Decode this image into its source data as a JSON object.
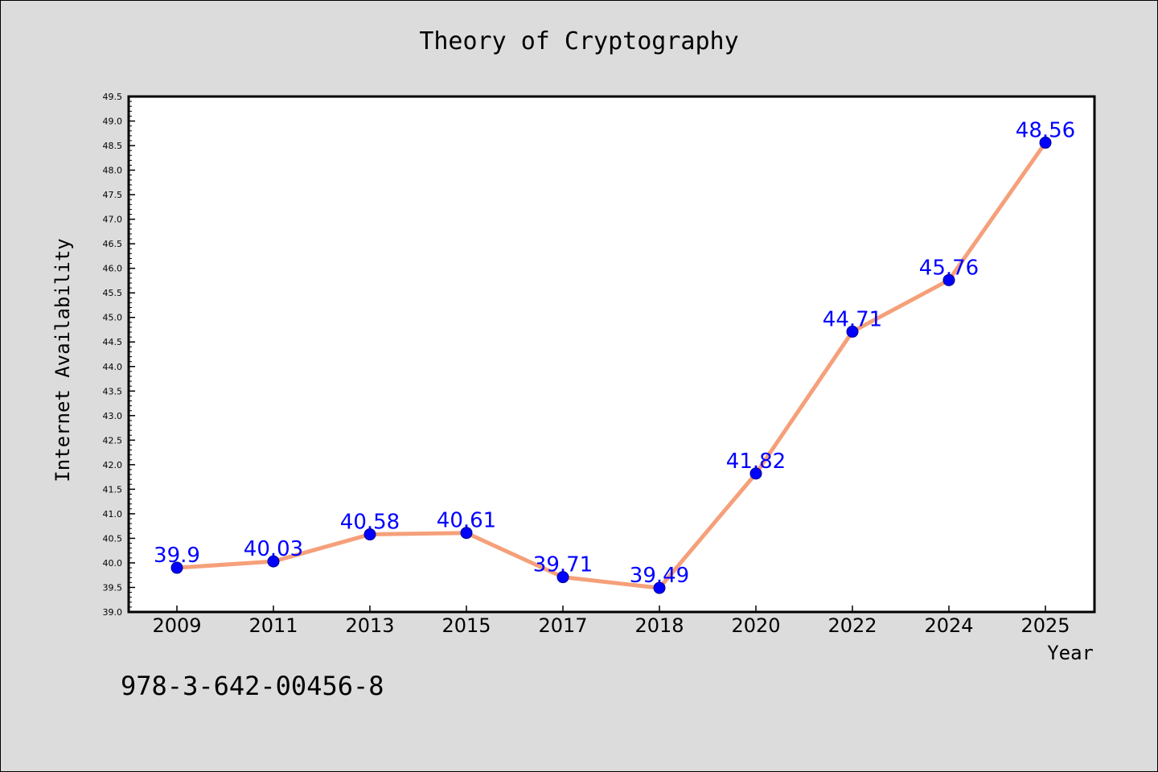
{
  "chart_data": {
    "type": "line",
    "title": "Theory of Cryptography",
    "xlabel": "Year",
    "ylabel": "Internet Availability",
    "categories": [
      "2009",
      "2011",
      "2013",
      "2015",
      "2017",
      "2018",
      "2020",
      "2022",
      "2024",
      "2025"
    ],
    "series": [
      {
        "values": [
          39.9,
          40.03,
          40.58,
          40.61,
          39.71,
          39.49,
          41.82,
          44.71,
          45.76,
          48.56
        ],
        "data_labels": [
          "39.9",
          "40.03",
          "40.58",
          "40.61",
          "39.71",
          "39.49",
          "41.82",
          "44.71",
          "45.76",
          "48.56"
        ],
        "line_color": "#f5a07a",
        "marker_color": "#0000ff"
      }
    ],
    "ylim": [
      39.0,
      49.5
    ],
    "yticks": [
      "39.0",
      "39.5",
      "40.0",
      "40.5",
      "41.0",
      "41.5",
      "42.0",
      "42.5",
      "43.0",
      "43.5",
      "44.0",
      "44.5",
      "45.0",
      "45.5",
      "46.0",
      "46.5",
      "47.0",
      "47.5",
      "48.0",
      "48.5",
      "49.0",
      "49.5"
    ],
    "grid": false,
    "background": "#dcdcdc",
    "plot_background": "#ffffff",
    "label_color": "#0000ff"
  },
  "footer": {
    "isbn": "978-3-642-00456-8"
  }
}
